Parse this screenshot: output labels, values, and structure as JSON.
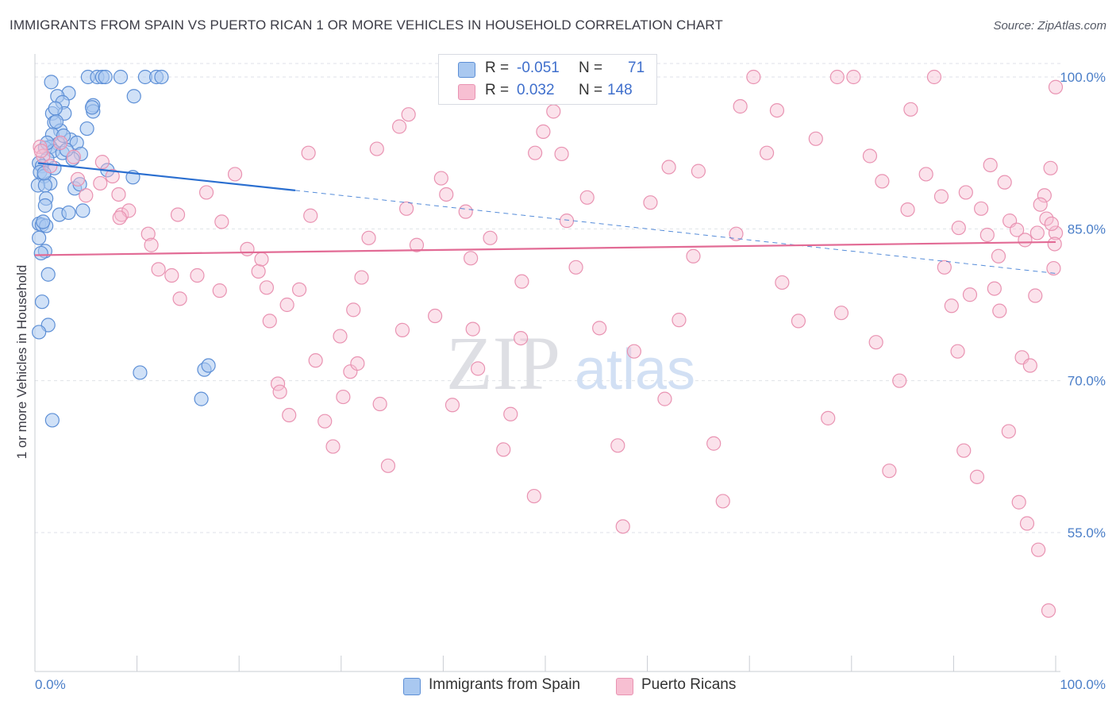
{
  "title": "IMMIGRANTS FROM SPAIN VS PUERTO RICAN 1 OR MORE VEHICLES IN HOUSEHOLD CORRELATION CHART",
  "source": "Source: ZipAtlas.com",
  "watermark": {
    "zip": "ZIP",
    "atlas": "atlas"
  },
  "legend": {
    "rows": [
      {
        "r_label": "R =",
        "r_value": "-0.051",
        "n_label": "N =",
        "n_value": "71"
      },
      {
        "r_label": "R =",
        "r_value": "0.032",
        "n_label": "N =",
        "n_value": "148"
      }
    ]
  },
  "bottom_legend": [
    {
      "label": "Immigrants from Spain"
    },
    {
      "label": "Puerto Ricans"
    }
  ],
  "chart_data": {
    "type": "scatter",
    "title": "IMMIGRANTS FROM SPAIN VS PUERTO RICAN 1 OR MORE VEHICLES IN HOUSEHOLD CORRELATION CHART",
    "xlabel": "",
    "ylabel": "1 or more Vehicles in Household",
    "xlim": [
      0,
      100
    ],
    "ylim": [
      42,
      101.5
    ],
    "x_tick_labels": [
      "0.0%",
      "100.0%"
    ],
    "y_ticks": [
      {
        "value": 100,
        "label": "100.0%"
      },
      {
        "value": 85,
        "label": "85.0%"
      },
      {
        "value": 70,
        "label": "70.0%"
      },
      {
        "value": 55,
        "label": "55.0%"
      }
    ],
    "grid": true,
    "colors": {
      "spain_fill": "#a9c8f0",
      "spain_stroke": "#5d8fd6",
      "spain_line": "#2b6fd0",
      "pr_fill": "#f7bfd2",
      "pr_stroke": "#e993b2",
      "pr_line": "#e26b95",
      "axis_label": "#4a7ec8",
      "grid": "#dfe2e8"
    },
    "series": [
      {
        "name": "Immigrants from Spain",
        "r": -0.051,
        "n": 71,
        "trend": {
          "x0": 0.3,
          "y0": 91.5,
          "x1_solid": 25.5,
          "y1_solid": 88.8,
          "x1": 100,
          "y1": 80.6
        },
        "points": [
          [
            1.6,
            99.5
          ],
          [
            5.2,
            100
          ],
          [
            6.1,
            100
          ],
          [
            6.6,
            100
          ],
          [
            6.9,
            100
          ],
          [
            8.4,
            100
          ],
          [
            10.8,
            100
          ],
          [
            11.9,
            100
          ],
          [
            12.4,
            100
          ],
          [
            3.3,
            98.4
          ],
          [
            2.2,
            98.1
          ],
          [
            9.7,
            98.1
          ],
          [
            2.7,
            97.5
          ],
          [
            5.7,
            97.2
          ],
          [
            1.7,
            96.4
          ],
          [
            2.9,
            96.4
          ],
          [
            1.9,
            95.5
          ],
          [
            5.7,
            96.6
          ],
          [
            2.5,
            94.7
          ],
          [
            5.1,
            94.9
          ],
          [
            1.7,
            94.3
          ],
          [
            3.5,
            93.8
          ],
          [
            4.1,
            93.5
          ],
          [
            2.3,
            93.4
          ],
          [
            1.5,
            93.1
          ],
          [
            1.0,
            93.0
          ],
          [
            1.8,
            92.7
          ],
          [
            2.7,
            92.5
          ],
          [
            4.5,
            92.4
          ],
          [
            3.7,
            91.9
          ],
          [
            1.2,
            91.9
          ],
          [
            0.4,
            91.5
          ],
          [
            0.7,
            91.2
          ],
          [
            0.5,
            90.6
          ],
          [
            7.1,
            90.8
          ],
          [
            0.9,
            90.2
          ],
          [
            9.6,
            90.1
          ],
          [
            1.5,
            89.5
          ],
          [
            0.3,
            89.3
          ],
          [
            1.0,
            89.3
          ],
          [
            3.9,
            89.0
          ],
          [
            1.1,
            88.0
          ],
          [
            1.0,
            87.3
          ],
          [
            4.7,
            86.8
          ],
          [
            2.4,
            86.4
          ],
          [
            0.4,
            85.5
          ],
          [
            0.7,
            85.4
          ],
          [
            1.1,
            85.3
          ],
          [
            0.8,
            85.7
          ],
          [
            0.4,
            84.1
          ],
          [
            1.0,
            82.8
          ],
          [
            1.3,
            80.5
          ],
          [
            0.7,
            77.8
          ],
          [
            1.3,
            75.5
          ],
          [
            0.4,
            74.8
          ],
          [
            0.6,
            82.6
          ],
          [
            3.3,
            86.6
          ],
          [
            1.9,
            91.0
          ],
          [
            2.8,
            94.2
          ],
          [
            3.1,
            92.8
          ],
          [
            4.4,
            89.4
          ],
          [
            5.6,
            97.0
          ],
          [
            2.0,
            96.9
          ],
          [
            2.1,
            95.6
          ],
          [
            1.2,
            93.5
          ],
          [
            10.3,
            70.8
          ],
          [
            16.6,
            71.1
          ],
          [
            17.0,
            71.5
          ],
          [
            16.3,
            68.2
          ],
          [
            1.7,
            66.1
          ],
          [
            0.9,
            90.5
          ]
        ]
      },
      {
        "name": "Puerto Ricans",
        "r": 0.032,
        "n": 148,
        "trend": {
          "x0": 0,
          "y0": 82.4,
          "x1": 100,
          "y1": 83.7
        },
        "points": [
          [
            0.5,
            93.1
          ],
          [
            0.8,
            92.2
          ],
          [
            0.6,
            92.7
          ],
          [
            1.5,
            91.2
          ],
          [
            2.5,
            93.5
          ],
          [
            3.8,
            92.1
          ],
          [
            4.2,
            89.9
          ],
          [
            5.0,
            88.3
          ],
          [
            6.4,
            89.5
          ],
          [
            6.6,
            91.6
          ],
          [
            7.6,
            90.2
          ],
          [
            8.2,
            88.4
          ],
          [
            8.5,
            86.4
          ],
          [
            9.2,
            86.8
          ],
          [
            8.3,
            86.1
          ],
          [
            11.1,
            84.5
          ],
          [
            11.4,
            83.4
          ],
          [
            12.1,
            81.0
          ],
          [
            13.4,
            80.4
          ],
          [
            14.2,
            78.1
          ],
          [
            14.0,
            86.4
          ],
          [
            15.9,
            80.4
          ],
          [
            16.8,
            88.6
          ],
          [
            18.1,
            78.9
          ],
          [
            18.3,
            85.7
          ],
          [
            19.6,
            90.4
          ],
          [
            20.8,
            83.0
          ],
          [
            21.9,
            80.8
          ],
          [
            22.2,
            82.0
          ],
          [
            22.7,
            79.2
          ],
          [
            23.0,
            75.9
          ],
          [
            23.8,
            69.7
          ],
          [
            24.0,
            68.9
          ],
          [
            24.7,
            77.5
          ],
          [
            24.9,
            66.6
          ],
          [
            25.9,
            79.0
          ],
          [
            26.8,
            92.5
          ],
          [
            27.0,
            86.3
          ],
          [
            27.5,
            72.0
          ],
          [
            28.4,
            66.0
          ],
          [
            29.2,
            63.5
          ],
          [
            29.9,
            74.4
          ],
          [
            30.2,
            68.4
          ],
          [
            30.9,
            70.9
          ],
          [
            31.2,
            77.0
          ],
          [
            31.6,
            71.7
          ],
          [
            32.0,
            80.2
          ],
          [
            32.7,
            84.1
          ],
          [
            33.5,
            92.9
          ],
          [
            33.8,
            67.7
          ],
          [
            34.6,
            61.6
          ],
          [
            35.7,
            95.1
          ],
          [
            36.0,
            75.0
          ],
          [
            36.6,
            96.3
          ],
          [
            36.4,
            87.0
          ],
          [
            37.4,
            83.4
          ],
          [
            39.2,
            76.4
          ],
          [
            39.8,
            90.0
          ],
          [
            40.3,
            88.4
          ],
          [
            40.9,
            67.6
          ],
          [
            42.7,
            82.1
          ],
          [
            42.2,
            86.7
          ],
          [
            42.9,
            75.1
          ],
          [
            43.4,
            71.2
          ],
          [
            44.6,
            84.1
          ],
          [
            45.9,
            63.2
          ],
          [
            46.6,
            66.7
          ],
          [
            47.7,
            79.8
          ],
          [
            47.6,
            74.2
          ],
          [
            48.9,
            58.6
          ],
          [
            49.0,
            92.5
          ],
          [
            49.8,
            94.6
          ],
          [
            50.8,
            96.6
          ],
          [
            51.6,
            92.4
          ],
          [
            52.1,
            85.8
          ],
          [
            53.0,
            81.2
          ],
          [
            54.1,
            88.1
          ],
          [
            55.3,
            75.2
          ],
          [
            57.1,
            63.6
          ],
          [
            57.6,
            55.6
          ],
          [
            58.7,
            72.9
          ],
          [
            59.4,
            98.3
          ],
          [
            60.3,
            87.6
          ],
          [
            61.7,
            68.2
          ],
          [
            62.1,
            91.1
          ],
          [
            63.1,
            76.0
          ],
          [
            64.5,
            82.3
          ],
          [
            65.0,
            90.7
          ],
          [
            66.5,
            63.8
          ],
          [
            67.4,
            58.1
          ],
          [
            68.7,
            84.5
          ],
          [
            69.1,
            97.1
          ],
          [
            70.4,
            100
          ],
          [
            71.7,
            92.5
          ],
          [
            72.7,
            96.7
          ],
          [
            73.2,
            79.7
          ],
          [
            74.8,
            75.9
          ],
          [
            76.5,
            93.9
          ],
          [
            77.7,
            66.3
          ],
          [
            78.6,
            100
          ],
          [
            79.0,
            76.7
          ],
          [
            80.2,
            100
          ],
          [
            81.8,
            92.2
          ],
          [
            82.4,
            73.8
          ],
          [
            83.7,
            61.1
          ],
          [
            84.7,
            70.0
          ],
          [
            85.5,
            86.9
          ],
          [
            87.3,
            90.4
          ],
          [
            88.1,
            100
          ],
          [
            89.1,
            81.2
          ],
          [
            89.8,
            77.4
          ],
          [
            90.4,
            72.9
          ],
          [
            91.0,
            63.1
          ],
          [
            92.3,
            60.5
          ],
          [
            93.3,
            84.4
          ],
          [
            94.4,
            82.3
          ],
          [
            95.4,
            65.0
          ],
          [
            96.7,
            72.3
          ],
          [
            97.5,
            71.5
          ],
          [
            98.2,
            84.6
          ],
          [
            98.9,
            88.3
          ],
          [
            99.5,
            91.0
          ],
          [
            99.8,
            81.1
          ],
          [
            100,
            84.6
          ],
          [
            83.0,
            89.7
          ],
          [
            85.8,
            96.8
          ],
          [
            88.8,
            88.2
          ],
          [
            90.5,
            85.1
          ],
          [
            91.2,
            88.6
          ],
          [
            92.7,
            87.0
          ],
          [
            94.0,
            79.1
          ],
          [
            94.5,
            76.9
          ],
          [
            95.5,
            85.8
          ],
          [
            96.2,
            84.9
          ],
          [
            97.0,
            83.9
          ],
          [
            98.5,
            87.4
          ],
          [
            99.1,
            86.0
          ],
          [
            99.6,
            85.5
          ],
          [
            99.9,
            83.5
          ],
          [
            100,
            99.0
          ],
          [
            96.4,
            58.0
          ],
          [
            97.2,
            55.9
          ],
          [
            98.3,
            53.3
          ],
          [
            99.3,
            47.3
          ],
          [
            98.0,
            78.4
          ],
          [
            95.0,
            89.6
          ],
          [
            93.6,
            91.3
          ],
          [
            91.6,
            78.5
          ]
        ]
      }
    ]
  }
}
